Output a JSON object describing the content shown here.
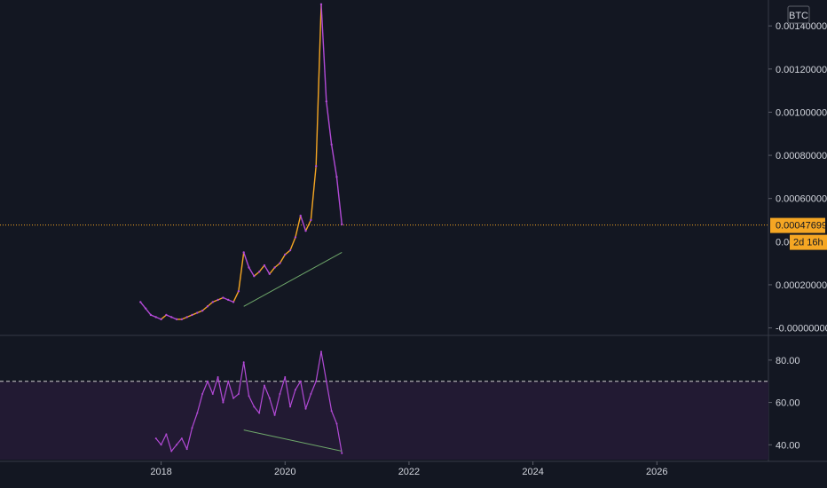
{
  "chart_data": [
    {
      "type": "line",
      "panel": "price",
      "currency": "BTC",
      "ylim": [
        -1e-05,
        0.00152
      ],
      "yticks": [
        0.0014,
        0.0012,
        0.001,
        0.0008,
        0.0006,
        0.0002,
        0.0
      ],
      "ytick_labels": [
        "0.00140000",
        "0.00120000",
        "0.00100000",
        "0.00080000",
        "0.00060000",
        "0.00020000",
        "-0.00000000"
      ],
      "partial_tick_label": "0.00",
      "last_price": 0.00047699,
      "last_price_label": "0.00047699",
      "countdown_label": "2d 16h",
      "colors": {
        "up": "#f5a623",
        "down": "#b24ad6",
        "trendline": "#6fa86b",
        "price_line": "#f5a623"
      },
      "series": [
        {
          "x": [
            "2017-09",
            "2017-10",
            "2017-11",
            "2017-12",
            "2018-01",
            "2018-02",
            "2018-03",
            "2018-04",
            "2018-05",
            "2018-06",
            "2018-07",
            "2018-08",
            "2018-09",
            "2018-10",
            "2018-11",
            "2018-12",
            "2019-01",
            "2019-02",
            "2019-03",
            "2019-04",
            "2019-05",
            "2019-06",
            "2019-07",
            "2019-08",
            "2019-09",
            "2019-10",
            "2019-11",
            "2019-12",
            "2020-01",
            "2020-02",
            "2020-03",
            "2020-04",
            "2020-05",
            "2020-06",
            "2020-07",
            "2020-08",
            "2020-09",
            "2020-10",
            "2020-11",
            "2020-12"
          ],
          "values": [
            0.00012,
            9e-05,
            6e-05,
            5e-05,
            4e-05,
            6e-05,
            5e-05,
            4e-05,
            4e-05,
            5e-05,
            6e-05,
            7e-05,
            8e-05,
            0.0001,
            0.00012,
            0.00013,
            0.00014,
            0.00013,
            0.00012,
            0.00017,
            0.00035,
            0.00028,
            0.00024,
            0.00026,
            0.00029,
            0.00025,
            0.00028,
            0.0003,
            0.00034,
            0.00036,
            0.00042,
            0.00052,
            0.00045,
            0.0005,
            0.00075,
            0.0015,
            0.00105,
            0.00085,
            0.0007,
            0.00048
          ]
        }
      ],
      "trendline": {
        "x": [
          "2019-05",
          "2020-12"
        ],
        "values": [
          0.0001,
          0.00035
        ]
      }
    },
    {
      "type": "line",
      "panel": "rsi",
      "ylim": [
        33,
        90
      ],
      "yticks": [
        80,
        60,
        40
      ],
      "ytick_labels": [
        "80.00",
        "60.00",
        "40.00"
      ],
      "overbought": 70,
      "colors": {
        "line": "#b24ad6",
        "band": "#221a33",
        "level": "#cfcfcf",
        "trendline": "#6fa86b"
      },
      "series": [
        {
          "x": [
            "2017-12",
            "2018-01",
            "2018-02",
            "2018-03",
            "2018-04",
            "2018-05",
            "2018-06",
            "2018-07",
            "2018-08",
            "2018-09",
            "2018-10",
            "2018-11",
            "2018-12",
            "2019-01",
            "2019-02",
            "2019-03",
            "2019-04",
            "2019-05",
            "2019-06",
            "2019-07",
            "2019-08",
            "2019-09",
            "2019-10",
            "2019-11",
            "2019-12",
            "2020-01",
            "2020-02",
            "2020-03",
            "2020-04",
            "2020-05",
            "2020-06",
            "2020-07",
            "2020-08",
            "2020-09",
            "2020-10",
            "2020-11",
            "2020-12"
          ],
          "values": [
            43,
            40,
            45,
            37,
            40,
            43,
            38,
            48,
            55,
            64,
            70,
            64,
            72,
            60,
            70,
            62,
            64,
            79,
            63,
            58,
            55,
            68,
            62,
            54,
            64,
            72,
            58,
            66,
            70,
            57,
            64,
            70,
            84,
            70,
            56,
            50,
            36
          ]
        }
      ],
      "trendline": {
        "x": [
          "2019-05",
          "2020-12"
        ],
        "values": [
          47,
          37
        ]
      }
    }
  ],
  "x_axis": {
    "ticks": [
      "2018",
      "2020",
      "2022",
      "2024",
      "2026"
    ],
    "range": [
      2015.4,
      2027.8
    ]
  }
}
